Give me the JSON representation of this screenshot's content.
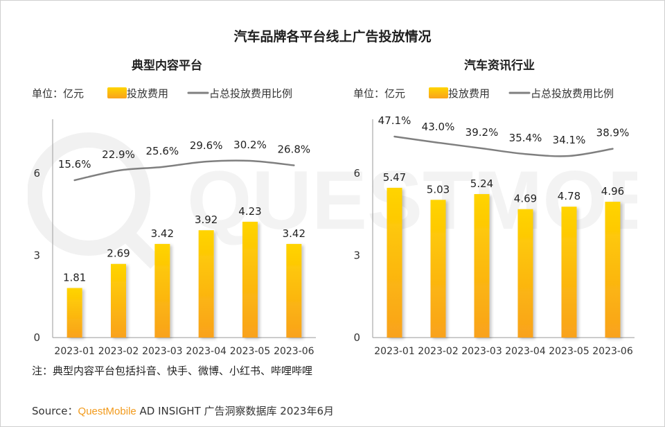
{
  "title": "汽车品牌各平台线上广告投放情况",
  "watermark": "QUESTMOBILE",
  "colors": {
    "bar_top": "#ffd400",
    "bar_bottom": "#f9a21c",
    "line": "#7f7f7f",
    "axis": "#9a9a9a",
    "brand": "#f29a1b"
  },
  "legend": {
    "unit": "单位：亿元",
    "bar_label": "投放费用",
    "line_label": "占总投放费用比例"
  },
  "chart_data": [
    {
      "type": "bar",
      "title": "典型内容平台",
      "categories": [
        "2023-01",
        "2023-02",
        "2023-03",
        "2023-04",
        "2023-05",
        "2023-06"
      ],
      "series": [
        {
          "name": "投放费用",
          "type": "bar",
          "values": [
            1.81,
            2.69,
            3.42,
            3.92,
            4.23,
            3.42
          ],
          "labels": [
            "1.81",
            "2.69",
            "3.42",
            "3.92",
            "4.23",
            "3.42"
          ]
        },
        {
          "name": "占总投放费用比例",
          "type": "line",
          "values": [
            15.6,
            22.9,
            25.6,
            29.6,
            30.2,
            26.8
          ],
          "labels": [
            "15.6%",
            "22.9%",
            "25.6%",
            "29.6%",
            "30.2%",
            "26.8%"
          ]
        }
      ],
      "yticks": [
        "0",
        "3",
        "6"
      ],
      "ylim": [
        0,
        7.8
      ]
    },
    {
      "type": "bar",
      "title": "汽车资讯行业",
      "categories": [
        "2023-01",
        "2023-02",
        "2023-03",
        "2023-04",
        "2023-05",
        "2023-06"
      ],
      "series": [
        {
          "name": "投放费用",
          "type": "bar",
          "values": [
            5.47,
            5.03,
            5.24,
            4.69,
            4.78,
            4.96
          ],
          "labels": [
            "5.47",
            "5.03",
            "5.24",
            "4.69",
            "4.78",
            "4.96"
          ]
        },
        {
          "name": "占总投放费用比例",
          "type": "line",
          "values": [
            47.1,
            43.0,
            39.2,
            35.4,
            34.1,
            38.9
          ],
          "labels": [
            "47.1%",
            "43.0%",
            "39.2%",
            "35.4%",
            "34.1%",
            "38.9%"
          ]
        }
      ],
      "yticks": [
        "0",
        "3",
        "6"
      ],
      "ylim": [
        0,
        7.8
      ]
    }
  ],
  "footnote": "注：典型内容平台包括抖音、快手、微博、小红书、哔哩哔哩",
  "source": {
    "prefix": "Source：",
    "brand": "QuestMobile",
    "suffix": " AD INSIGHT 广告洞察数据库 2023年6月"
  }
}
